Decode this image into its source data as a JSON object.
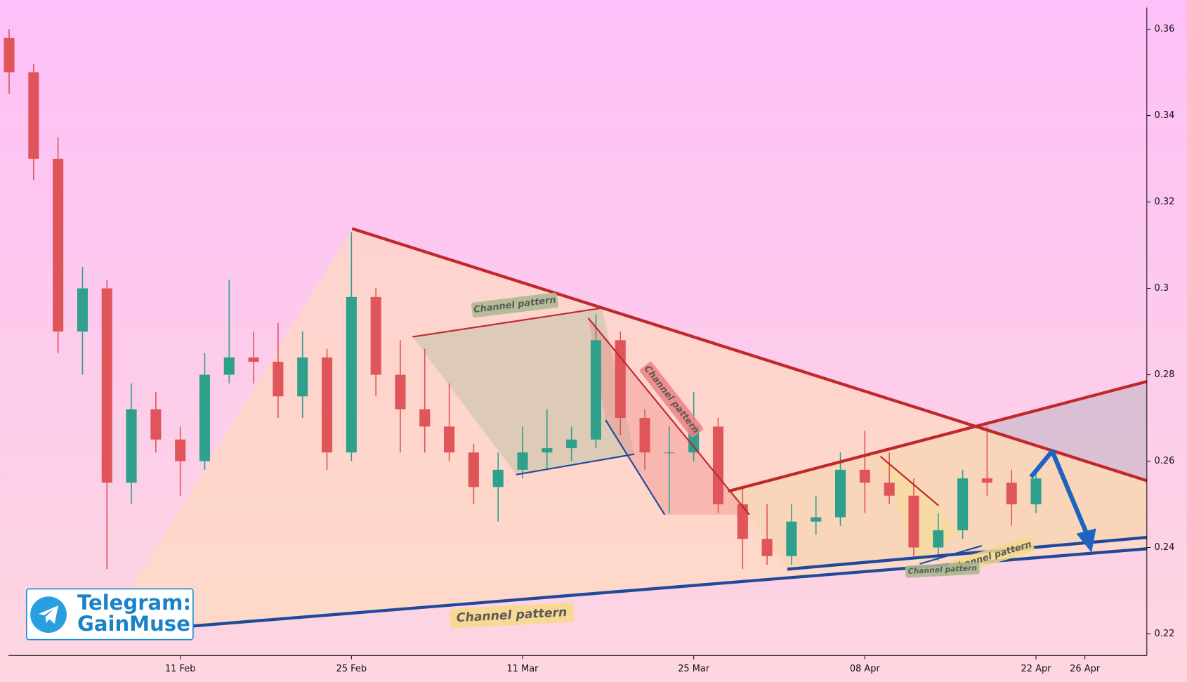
{
  "chart_data": {
    "type": "candlestick",
    "categories": [
      null,
      null,
      null,
      null,
      null,
      null,
      null,
      "11 Feb",
      null,
      null,
      null,
      null,
      null,
      null,
      "25 Feb",
      null,
      null,
      null,
      null,
      null,
      null,
      "11 Mar",
      null,
      null,
      null,
      null,
      null,
      null,
      "25 Mar",
      null,
      null,
      null,
      null,
      null,
      null,
      "08 Apr",
      null,
      null,
      null,
      null,
      null,
      null,
      "22 Apr",
      null,
      "26 Apr",
      null,
      null
    ],
    "open": [
      0.358,
      0.35,
      0.33,
      0.29,
      0.3,
      0.255,
      0.272,
      0.265,
      0.26,
      0.28,
      0.284,
      0.283,
      0.275,
      0.284,
      0.262,
      0.298,
      0.28,
      0.272,
      0.268,
      0.262,
      0.254,
      0.258,
      0.262,
      0.263,
      0.265,
      0.288,
      0.27,
      0.262,
      0.262,
      0.268,
      0.25,
      0.242,
      0.238,
      0.246,
      0.247,
      0.258,
      0.255,
      0.252,
      0.24,
      0.244,
      0.256,
      0.255,
      0.25,
      null,
      null,
      null,
      null
    ],
    "high": [
      0.36,
      0.352,
      0.335,
      0.305,
      0.302,
      0.278,
      0.276,
      0.268,
      0.285,
      0.302,
      0.29,
      0.292,
      0.29,
      0.286,
      0.313,
      0.3,
      0.288,
      0.286,
      0.278,
      0.264,
      0.262,
      0.268,
      0.272,
      0.268,
      0.294,
      0.29,
      0.272,
      0.268,
      0.276,
      0.27,
      0.254,
      0.25,
      0.25,
      0.252,
      0.262,
      0.267,
      0.262,
      0.256,
      0.248,
      0.258,
      0.268,
      0.258,
      0.258,
      null,
      null,
      null,
      null
    ],
    "low": [
      0.345,
      0.325,
      0.285,
      0.28,
      0.235,
      0.25,
      0.262,
      0.252,
      0.258,
      0.278,
      0.278,
      0.27,
      0.27,
      0.258,
      0.26,
      0.275,
      0.262,
      0.262,
      0.26,
      0.25,
      0.246,
      0.256,
      0.258,
      0.26,
      0.263,
      0.266,
      0.258,
      0.248,
      0.26,
      0.248,
      0.235,
      0.236,
      0.236,
      0.243,
      0.245,
      0.248,
      0.25,
      0.238,
      0.237,
      0.242,
      0.252,
      0.245,
      0.248,
      null,
      null,
      null,
      null
    ],
    "close": [
      0.35,
      0.33,
      0.29,
      0.3,
      0.255,
      0.272,
      0.265,
      0.26,
      0.28,
      0.284,
      0.283,
      0.275,
      0.284,
      0.262,
      0.298,
      0.28,
      0.272,
      0.268,
      0.262,
      0.254,
      0.258,
      0.262,
      0.263,
      0.265,
      0.288,
      0.27,
      0.262,
      0.262,
      0.268,
      0.25,
      0.242,
      0.238,
      0.246,
      0.247,
      0.258,
      0.255,
      0.252,
      0.24,
      0.244,
      0.256,
      0.255,
      0.25,
      0.256,
      null,
      null,
      null,
      null
    ],
    "up_color": "#2fa08c",
    "down_color": "#e0555a",
    "ylim": [
      0.215,
      0.365
    ],
    "yticks": [
      0.22,
      0.24,
      0.26,
      0.28,
      0.3,
      0.32,
      0.34,
      0.36
    ],
    "annotations": [
      "Channel pattern",
      "Channel pattern",
      "Channel pattern",
      "Channel pattern",
      "Channel pattern"
    ],
    "watermark": [
      "Telegram:",
      "GainMuse"
    ]
  }
}
